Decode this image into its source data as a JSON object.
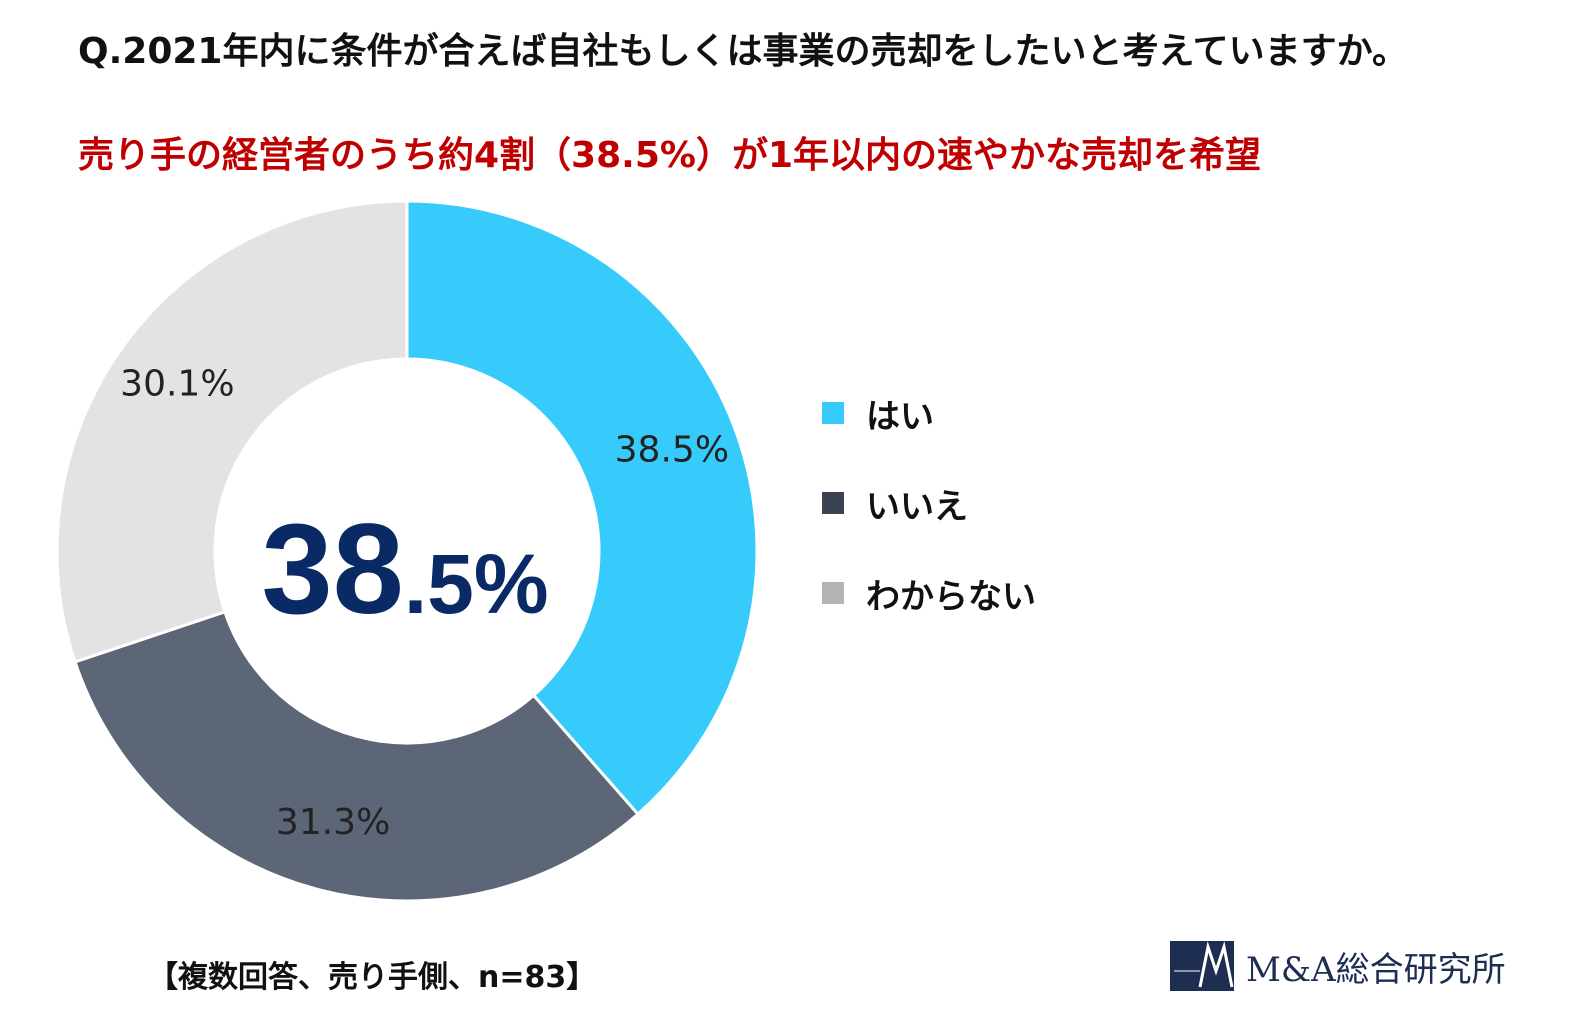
{
  "question": "Q.2021年内に条件が合えば自社もしくは事業の売却をしたいと考えていますか。",
  "headline": "売り手の経営者のうち約4割（38.5%）が1年以内の速やかな売却を希望",
  "center_value": {
    "integer": "38",
    "decimal": ".5%"
  },
  "footnote": "【複数回答、売り手側、n=83】",
  "logo": {
    "text": "M&A総合研究所"
  },
  "chart_data": {
    "type": "pie",
    "donut": true,
    "categories": [
      "はい",
      "いいえ",
      "わからない"
    ],
    "values": [
      38.5,
      31.3,
      30.1
    ],
    "data_labels": [
      "38.5%",
      "31.3%",
      "30.1%"
    ],
    "colors": [
      "#37cbfc",
      "#5c6677",
      "#e3e3e3"
    ],
    "legend_colors": [
      "#37cbfc",
      "#3b4252",
      "#b4b4b4"
    ],
    "legend_position": "right",
    "start_angle": "12 o'clock",
    "direction": "clockwise"
  }
}
